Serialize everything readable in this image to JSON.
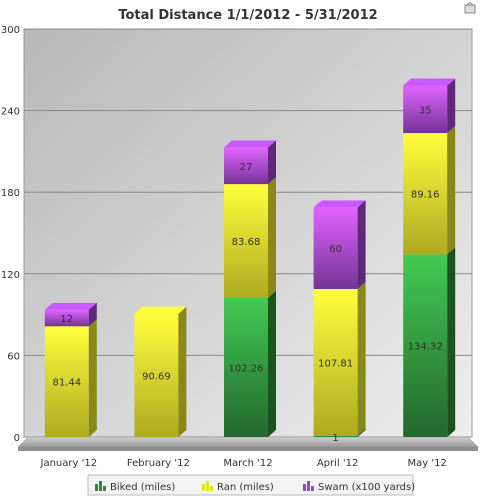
{
  "chart_data": {
    "type": "bar",
    "stacked": true,
    "title": "Total Distance 1/1/2012 - 5/31/2012",
    "categories": [
      "January '12",
      "February '12",
      "March '12",
      "April '12",
      "May '12"
    ],
    "ylim": [
      0,
      300
    ],
    "yticks": [
      0,
      60,
      120,
      180,
      240,
      300
    ],
    "grid": true,
    "legend_position": "bottom",
    "series": [
      {
        "name": "Biked (miles)",
        "values": [
          0,
          0,
          102.26,
          1,
          134.32
        ],
        "labels": [
          "",
          "",
          "102.26",
          "1",
          "134.32"
        ],
        "color": "#2e8b3a"
      },
      {
        "name": "Ran (miles)",
        "values": [
          81.44,
          90.69,
          83.68,
          107.81,
          89.16
        ],
        "labels": [
          "81.44",
          "90.69",
          "83.68",
          "107.81",
          "89.16"
        ],
        "color": "#e6e22a"
      },
      {
        "name": "Swam (x100 yards)",
        "values": [
          12,
          0,
          27,
          60,
          35
        ],
        "labels": [
          "12",
          "",
          "27",
          "60",
          "35"
        ],
        "color": "#9b45c8"
      }
    ]
  }
}
